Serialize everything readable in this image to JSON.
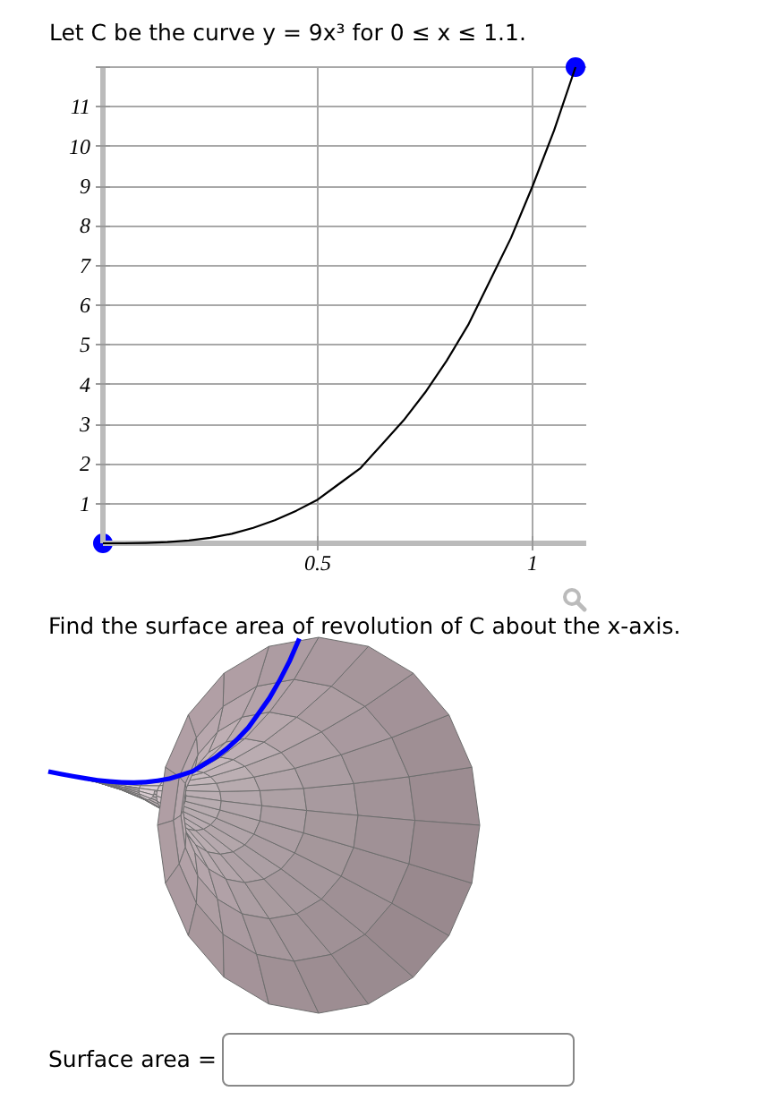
{
  "chart_data": {
    "type": "line",
    "title": "Let C be the curve y = 9x³ for 0 ≤ x ≤ 1.1.",
    "annotations": [
      "Find the surface area of revolution of C about the x-axis.",
      "Surface area ="
    ],
    "xlim": [
      0,
      1.125
    ],
    "ylim": [
      0,
      12
    ],
    "xticks": [
      0.5,
      1
    ],
    "yticks": [
      1,
      2,
      3,
      4,
      5,
      6,
      7,
      8,
      9,
      10,
      11,
      {
        "value": 12,
        "label": null
      }
    ],
    "grid": true,
    "series": [
      {
        "color": "#000000",
        "x": [
          0,
          0.05,
          0.1,
          0.15,
          0.2,
          0.25,
          0.3,
          0.35,
          0.4,
          0.45,
          0.5,
          0.55,
          0.6,
          0.65,
          0.7,
          0.75,
          0.8,
          0.85,
          0.9,
          0.95,
          1,
          1.05,
          1.1
        ],
        "values": [
          0,
          0,
          0.01,
          0.03,
          0.07,
          0.14,
          0.24,
          0.39,
          0.58,
          0.82,
          1.1,
          1.5,
          1.9,
          2.5,
          3.1,
          3.8,
          4.6,
          5.5,
          6.6,
          7.7,
          9,
          10.4,
          12
        ]
      },
      {
        "type": "scatter",
        "color": "#0000ff",
        "marker": "circle",
        "x": [
          0,
          1.1
        ],
        "values": [
          0,
          12
        ]
      }
    ]
  }
}
